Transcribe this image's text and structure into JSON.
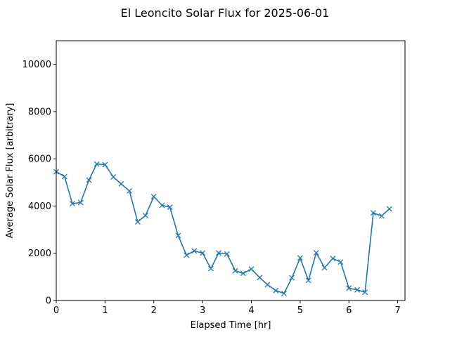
{
  "chart_data": {
    "type": "line",
    "title": "El Leoncito Solar Flux for 2025-06-01",
    "xlabel": "Elapsed Time [hr]",
    "ylabel": "Average Solar Flux [arbitrary]",
    "xlim": [
      0,
      7.15
    ],
    "ylim": [
      0,
      11000
    ],
    "xticks": [
      0,
      1,
      2,
      3,
      4,
      5,
      6,
      7
    ],
    "yticks": [
      0,
      2000,
      4000,
      6000,
      8000,
      10000
    ],
    "grid": false,
    "marker": "x",
    "line_color": "#1f77b4",
    "series": [
      {
        "x": [
          0.0,
          0.17,
          0.33,
          0.5,
          0.67,
          0.83,
          1.0,
          1.17,
          1.33,
          1.5,
          1.67,
          1.83,
          2.0,
          2.17,
          2.33,
          2.5,
          2.67,
          2.83,
          3.0,
          3.17,
          3.33,
          3.5,
          3.67,
          3.83,
          4.0,
          4.17,
          4.33,
          4.5,
          4.67,
          4.83,
          5.0,
          5.17,
          5.33,
          5.5,
          5.67,
          5.83,
          6.0,
          6.17,
          6.33,
          6.5,
          6.67,
          6.83
        ],
        "y": [
          5450,
          5250,
          4100,
          4150,
          5100,
          5780,
          5750,
          5230,
          4940,
          4640,
          3330,
          3600,
          4400,
          4030,
          3950,
          2750,
          1920,
          2100,
          2010,
          1350,
          2010,
          1970,
          1260,
          1150,
          1330,
          970,
          670,
          420,
          300,
          960,
          1800,
          850,
          2020,
          1390,
          1780,
          1630,
          520,
          450,
          350,
          3710,
          3580,
          3880
        ]
      }
    ]
  }
}
